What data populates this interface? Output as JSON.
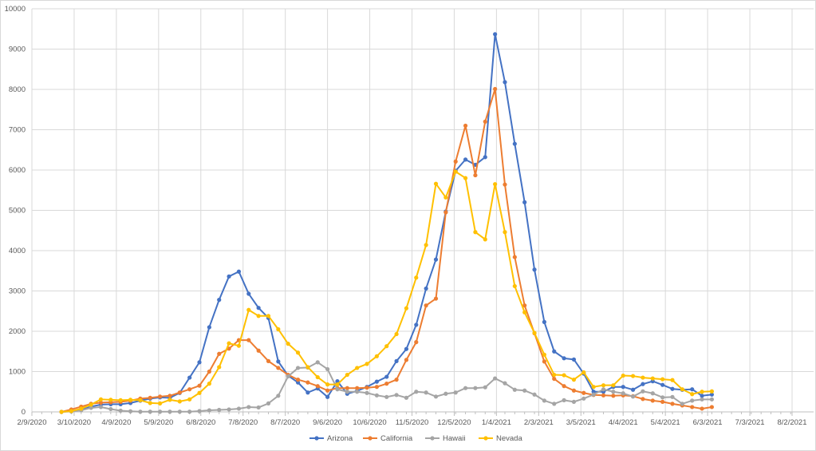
{
  "chart_data": {
    "type": "line",
    "title": "",
    "xlabel": "",
    "ylabel": "",
    "ylim": [
      0,
      10000
    ],
    "yticks": [
      "0",
      "1000",
      "2000",
      "3000",
      "4000",
      "5000",
      "6000",
      "7000",
      "8000",
      "9000",
      "10000"
    ],
    "xticks": [
      "2/9/2020",
      "3/10/2020",
      "4/9/2020",
      "5/9/2020",
      "6/8/2020",
      "7/8/2020",
      "8/7/2020",
      "9/6/2020",
      "10/6/2020",
      "11/5/2020",
      "12/5/2020",
      "1/4/2021",
      "2/3/2021",
      "3/5/2021",
      "4/4/2021",
      "5/4/2021",
      "6/3/2021",
      "7/3/2021",
      "8/2/2021"
    ],
    "xlim_days": [
      0,
      540
    ],
    "x_start_day": 21,
    "x_step_days": 7,
    "grid": true,
    "legend": "bottom",
    "series": [
      {
        "name": "Arizona",
        "color": "#4472C4",
        "values": [
          0,
          20,
          50,
          130,
          180,
          190,
          190,
          220,
          280,
          330,
          360,
          350,
          470,
          850,
          1230,
          2100,
          2780,
          3360,
          3480,
          2930,
          2580,
          2330,
          1250,
          900,
          730,
          480,
          580,
          370,
          760,
          450,
          520,
          620,
          750,
          870,
          1260,
          1560,
          2160,
          3060,
          3780,
          4970,
          5980,
          6260,
          6130,
          6320,
          9370,
          8180,
          6650,
          5200,
          3530,
          2230,
          1500,
          1330,
          1300,
          950,
          500,
          500,
          620,
          620,
          550,
          690,
          760,
          670,
          570,
          550,
          560,
          400,
          430
        ]
      },
      {
        "name": "California",
        "color": "#ED7D31",
        "values": [
          0,
          60,
          130,
          200,
          230,
          240,
          250,
          280,
          330,
          350,
          380,
          400,
          480,
          560,
          650,
          1000,
          1440,
          1570,
          1780,
          1780,
          1520,
          1260,
          1090,
          920,
          800,
          730,
          640,
          530,
          590,
          590,
          590,
          600,
          620,
          700,
          800,
          1290,
          1730,
          2640,
          2810,
          4950,
          6210,
          7100,
          5870,
          7200,
          8010,
          5640,
          3840,
          2640,
          1950,
          1250,
          820,
          640,
          530,
          470,
          420,
          410,
          400,
          410,
          390,
          320,
          280,
          250,
          200,
          160,
          120,
          80,
          120
        ]
      },
      {
        "name": "Hawaii",
        "color": "#A5A5A5",
        "values": [
          0,
          10,
          40,
          100,
          120,
          70,
          30,
          15,
          5,
          5,
          5,
          5,
          5,
          5,
          20,
          40,
          50,
          60,
          80,
          120,
          110,
          210,
          400,
          880,
          1090,
          1100,
          1230,
          1060,
          560,
          500,
          500,
          470,
          410,
          370,
          420,
          350,
          500,
          480,
          380,
          450,
          480,
          590,
          590,
          610,
          830,
          710,
          550,
          530,
          430,
          280,
          200,
          290,
          250,
          330,
          430,
          560,
          500,
          460,
          380,
          510,
          460,
          360,
          370,
          200,
          280,
          310,
          310
        ]
      },
      {
        "name": "Nevada",
        "color": "#FFC000",
        "values": [
          0,
          20,
          80,
          180,
          310,
          300,
          290,
          300,
          290,
          220,
          210,
          300,
          260,
          310,
          470,
          700,
          1110,
          1700,
          1640,
          2530,
          2380,
          2380,
          2050,
          1690,
          1470,
          1110,
          860,
          680,
          680,
          920,
          1090,
          1190,
          1380,
          1630,
          1930,
          2570,
          3330,
          4140,
          5660,
          5320,
          5960,
          5800,
          4460,
          4280,
          5650,
          4460,
          3120,
          2470,
          1960,
          1420,
          920,
          910,
          800,
          980,
          620,
          660,
          660,
          900,
          890,
          850,
          830,
          810,
          790,
          560,
          440,
          500,
          510
        ]
      }
    ]
  }
}
